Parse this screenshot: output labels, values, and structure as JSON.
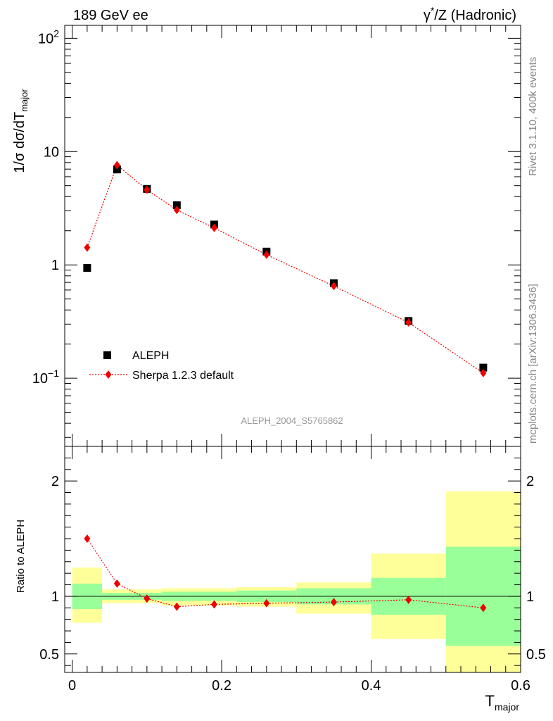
{
  "header": {
    "left_title": "189 GeV ee",
    "right_title_prefix": "γ",
    "right_title_sup": "*",
    "right_title_suffix": "/Z (Hadronic)"
  },
  "side_text": {
    "upper": "Rivet 3.1.10,  400k events",
    "lower": "mcplots.cern.ch [arXiv:1306.3436]"
  },
  "watermark": "ALEPH_2004_S5765862",
  "colors": {
    "data": "#000000",
    "mc": "#ee0000",
    "band_inner": "#99ff99",
    "band_outer": "#ffff99"
  },
  "chart_data": [
    {
      "type": "scatter",
      "ylabel": "1/σ  dσ/dT",
      "ylabel_sub": "major",
      "yscale": "log",
      "ylim": [
        0.025,
        130
      ],
      "xlim": [
        -0.01,
        0.6
      ],
      "y_tick_labels": [
        {
          "value": 0.1,
          "base": "10",
          "sup": "−1"
        },
        {
          "value": 1,
          "base": "1",
          "sup": ""
        },
        {
          "value": 10,
          "base": "10",
          "sup": ""
        },
        {
          "value": 100,
          "base": "10",
          "sup": "2"
        }
      ],
      "legend": {
        "placement": "bottom-left",
        "entries": [
          {
            "label": "ALEPH",
            "marker": "square"
          },
          {
            "label": "Sherpa 1.2.3 default",
            "marker": "diamond"
          }
        ]
      },
      "series": [
        {
          "name": "ALEPH",
          "x": [
            0.02,
            0.06,
            0.1,
            0.14,
            0.19,
            0.26,
            0.35,
            0.45,
            0.55
          ],
          "y": [
            0.94,
            6.95,
            4.68,
            3.36,
            2.27,
            1.31,
            0.69,
            0.32,
            0.124
          ]
        },
        {
          "name": "Sherpa 1.2.3 default",
          "x": [
            0.02,
            0.06,
            0.1,
            0.14,
            0.19,
            0.26,
            0.35,
            0.45,
            0.55
          ],
          "y": [
            1.42,
            7.6,
            4.6,
            3.05,
            2.12,
            1.23,
            0.65,
            0.31,
            0.111
          ]
        }
      ]
    },
    {
      "type": "scatter",
      "ylabel": "Ratio to ALEPH",
      "xlabel": "T",
      "xlabel_sub": "major",
      "ylim": [
        0.34,
        2.3
      ],
      "xlim": [
        -0.01,
        0.6
      ],
      "x_ticks": [
        0,
        0.2,
        0.4,
        0.6
      ],
      "x_tick_labels": [
        "0",
        "0.2",
        "0.4",
        "0.6"
      ],
      "y_ticks": [
        0.5,
        1,
        2
      ],
      "y_tick_labels": [
        "0.5",
        "1",
        "2"
      ],
      "bins": [
        {
          "lo": 0.0,
          "hi": 0.04,
          "inner": [
            0.89,
            1.11
          ],
          "outer": [
            0.77,
            1.25
          ]
        },
        {
          "lo": 0.04,
          "hi": 0.08,
          "inner": [
            0.97,
            1.03
          ],
          "outer": [
            0.94,
            1.06
          ]
        },
        {
          "lo": 0.08,
          "hi": 0.12,
          "inner": [
            0.97,
            1.03
          ],
          "outer": [
            0.94,
            1.06
          ]
        },
        {
          "lo": 0.12,
          "hi": 0.16,
          "inner": [
            0.96,
            1.04
          ],
          "outer": [
            0.92,
            1.07
          ]
        },
        {
          "lo": 0.16,
          "hi": 0.22,
          "inner": [
            0.96,
            1.04
          ],
          "outer": [
            0.92,
            1.07
          ]
        },
        {
          "lo": 0.22,
          "hi": 0.3,
          "inner": [
            0.95,
            1.05
          ],
          "outer": [
            0.91,
            1.08
          ]
        },
        {
          "lo": 0.3,
          "hi": 0.4,
          "inner": [
            0.93,
            1.07
          ],
          "outer": [
            0.85,
            1.12
          ]
        },
        {
          "lo": 0.4,
          "hi": 0.5,
          "inner": [
            0.84,
            1.16
          ],
          "outer": [
            0.63,
            1.37
          ]
        },
        {
          "lo": 0.5,
          "hi": 0.6,
          "inner": [
            0.57,
            1.43
          ],
          "outer": [
            0.3,
            1.91
          ]
        }
      ],
      "series": [
        {
          "name": "Sherpa 1.2.3 default",
          "x": [
            0.02,
            0.06,
            0.1,
            0.14,
            0.19,
            0.26,
            0.35,
            0.45,
            0.55
          ],
          "y": [
            1.5,
            1.11,
            0.98,
            0.91,
            0.93,
            0.94,
            0.95,
            0.97,
            0.9
          ]
        }
      ]
    }
  ]
}
